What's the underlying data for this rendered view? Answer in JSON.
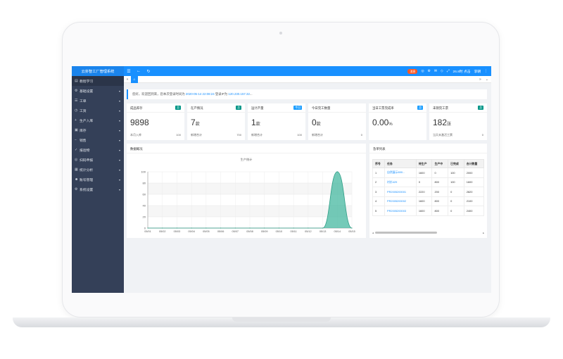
{
  "app": {
    "title": "云卦智工厂管理系统"
  },
  "topbar": {
    "badge": "消息",
    "user_text": "26.8时 点击",
    "user_name": "李朝"
  },
  "sidebar": {
    "items": [
      {
        "label": "教程学习",
        "icon": "book-icon",
        "caret": false
      },
      {
        "label": "基础设置",
        "icon": "gear-icon",
        "caret": true
      },
      {
        "label": "工单",
        "icon": "list-icon",
        "caret": true
      },
      {
        "label": "工资",
        "icon": "clock-icon",
        "caret": true
      },
      {
        "label": "生产入库",
        "icon": "plus-icon",
        "caret": true
      },
      {
        "label": "库存",
        "icon": "box-icon",
        "caret": true
      },
      {
        "label": "销售",
        "icon": "minus-icon",
        "caret": true
      },
      {
        "label": "报验物",
        "icon": "check-icon",
        "caret": true
      },
      {
        "label": "扫码申报",
        "icon": "scan-icon",
        "caret": true
      },
      {
        "label": "统计分析",
        "icon": "chart-icon",
        "caret": true
      },
      {
        "label": "账号管理",
        "icon": "users-icon",
        "caret": true
      },
      {
        "label": "系统设置",
        "icon": "settings-icon",
        "caret": true
      }
    ]
  },
  "notice": {
    "prefix": "您好，欢迎回到来，您本次登录时间为 ",
    "time": "2020-05-14 22:08:24",
    "mid": " 登录IP为 ",
    "ip": "120.230.157.32",
    "suffix": "..."
  },
  "cards": [
    {
      "title": "成品库存",
      "tag": "总",
      "tag_color": "#009688",
      "value": "9898",
      "unit": "",
      "sub_label": "本月入库",
      "sub_value": "100"
    },
    {
      "title": "在产情况",
      "tag": "总",
      "tag_color": "#009688",
      "value": "7",
      "unit": "款",
      "sub_label": "新增合计",
      "sub_value": "700"
    },
    {
      "title": "运计产量",
      "tag": "今日",
      "tag_color": "#1e9fff",
      "value": "1",
      "unit": "款",
      "sub_label": "新增合计",
      "sub_value": "100"
    },
    {
      "title": "今日完工数量",
      "tag": "",
      "tag_color": "#ffffff",
      "value": "0",
      "unit": "款",
      "sub_label": "新增合计",
      "sub_value": "0"
    },
    {
      "title": "当日工票完成率",
      "tag": "总",
      "tag_color": "#1e9fff",
      "value": "0.00",
      "unit": "%",
      "sub_label": "",
      "sub_value": ""
    },
    {
      "title": "未销完工票",
      "tag": "总",
      "tag_color": "#009688",
      "value": "182",
      "unit": "张",
      "sub_label": "当天未激活工票",
      "sub_value": "0"
    }
  ],
  "chart_panel": {
    "title": "数据概况"
  },
  "chart_data": {
    "type": "area",
    "title": "生产统计",
    "xlabel": "",
    "ylabel": "",
    "x": [
      "05/01",
      "05/02",
      "05/03",
      "05/04",
      "05/05",
      "05/06",
      "05/07",
      "05/08",
      "05/09",
      "05/10",
      "05/11",
      "05/12",
      "05/13",
      "05/14",
      "05/15"
    ],
    "series": [
      {
        "values": [
          0,
          0,
          0,
          0,
          0,
          0,
          0,
          0,
          0,
          0,
          0,
          0,
          0,
          100,
          0
        ]
      }
    ],
    "yticks": [
      0,
      20,
      40,
      60,
      80,
      100
    ],
    "ylim": [
      0,
      100
    ],
    "color": "#46b8a0"
  },
  "orders_panel": {
    "title": "急单列表",
    "columns": [
      "序号",
      "任务",
      "待生产",
      "生产中",
      "已完成",
      "合计数量"
    ],
    "rows": [
      [
        "1",
        "自然展示800...",
        "1600",
        "0",
        "100",
        "2000"
      ],
      [
        "2",
        "衬衫429",
        "0",
        "800",
        "100",
        "1600"
      ],
      [
        "3",
        "PR2005200001",
        "2220",
        "200",
        "0",
        "2820"
      ],
      [
        "4",
        "PR2005200002",
        "1600",
        "800",
        "0",
        "2100"
      ],
      [
        "5",
        "PR2005200003",
        "1600",
        "800",
        "0",
        "2400"
      ]
    ]
  }
}
